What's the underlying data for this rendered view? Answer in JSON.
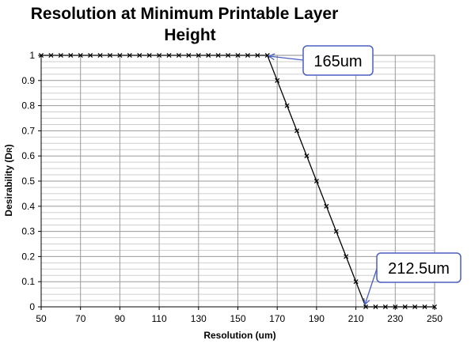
{
  "chart_data": {
    "type": "line",
    "title_lines": [
      "Resolution at Minimum Printable Layer",
      "Height"
    ],
    "xlabel": "Resolution (um)",
    "ylabel_main": "Desirability (D",
    "ylabel_sub": "R",
    "ylabel_close": ")",
    "xlim": [
      50,
      250
    ],
    "ylim": [
      0,
      1
    ],
    "x_ticks": [
      "50",
      "70",
      "90",
      "110",
      "130",
      "150",
      "170",
      "190",
      "210",
      "230",
      "250"
    ],
    "y_ticks": [
      "0",
      "0.1",
      "0.2",
      "0.3",
      "0.4",
      "0.5",
      "0.6",
      "0.7",
      "0.8",
      "0.9",
      "1"
    ],
    "grid": true,
    "series": [
      {
        "x": [
          50,
          55,
          60,
          65,
          70,
          75,
          80,
          85,
          90,
          95,
          100,
          105,
          110,
          115,
          120,
          125,
          130,
          135,
          140,
          145,
          150,
          155,
          160,
          165,
          170,
          175,
          180,
          185,
          190,
          195,
          200,
          205,
          210,
          215,
          220,
          225,
          230,
          235,
          240,
          245,
          250
        ],
        "y": [
          1,
          1,
          1,
          1,
          1,
          1,
          1,
          1,
          1,
          1,
          1,
          1,
          1,
          1,
          1,
          1,
          1,
          1,
          1,
          1,
          1,
          1,
          1,
          1,
          0.9,
          0.8,
          0.7,
          0.6,
          0.5,
          0.4,
          0.3,
          0.2,
          0.1,
          0,
          0,
          0,
          0,
          0,
          0,
          0,
          0
        ],
        "color": "#000000",
        "marker": "x"
      }
    ],
    "annotations": [
      {
        "text": "165um",
        "x": 165,
        "y": 1
      },
      {
        "text": "212.5um",
        "x": 215,
        "y": 0
      }
    ],
    "callout_border_color": "#4a5fc1"
  }
}
